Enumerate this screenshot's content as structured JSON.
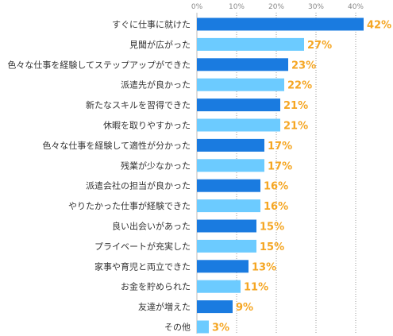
{
  "chart_data": {
    "type": "bar",
    "orientation": "horizontal",
    "categories": [
      "すぐに仕事に就けた",
      "見聞が広がった",
      "色々な仕事を経験してステップアップができた",
      "派遣先が良かった",
      "新たなスキルを習得できた",
      "休暇を取りやすかった",
      "色々な仕事を経験して適性が分かった",
      "残業が少なかった",
      "派遣会社の担当が良かった",
      "やりたかった仕事が経験できた",
      "良い出会いがあった",
      "プライベートが充実した",
      "家事や育児と両立できた",
      "お金を貯められた",
      "友達が増えた",
      "その他"
    ],
    "values": [
      42,
      27,
      23,
      22,
      21,
      21,
      17,
      17,
      16,
      16,
      15,
      15,
      13,
      11,
      9,
      3
    ],
    "value_labels": [
      "42%",
      "27%",
      "23%",
      "22%",
      "21%",
      "21%",
      "17%",
      "17%",
      "16%",
      "16%",
      "15%",
      "15%",
      "13%",
      "11%",
      "9%",
      "3%"
    ],
    "xlim": [
      0,
      50
    ],
    "x_ticks": [
      0,
      10,
      20,
      30,
      40
    ],
    "x_tick_labels": [
      "0%",
      "10%",
      "20%",
      "30%",
      "40%"
    ],
    "grid": true,
    "bar_colors": [
      "#1a7be0",
      "#6ccbff"
    ],
    "value_label_color": "#f5a623"
  }
}
